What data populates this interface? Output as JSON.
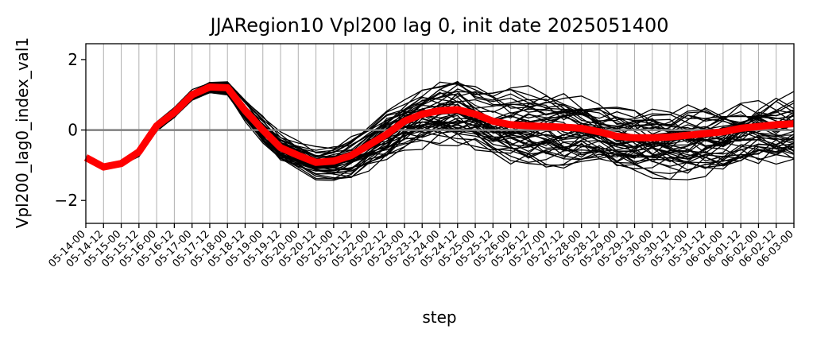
{
  "chart_data": {
    "type": "line",
    "title": "JJARegion10 Vpl200 lag 0, init date 2025051400",
    "xlabel": "step",
    "ylabel": "Vpl200_lag0_index_val1",
    "x": [
      "05-14-00",
      "05-14-12",
      "05-15-00",
      "05-15-12",
      "05-16-00",
      "05-16-12",
      "05-17-00",
      "05-17-12",
      "05-18-00",
      "05-18-12",
      "05-19-00",
      "05-19-12",
      "05-20-00",
      "05-20-12",
      "05-21-00",
      "05-21-12",
      "05-22-00",
      "05-22-12",
      "05-23-00",
      "05-23-12",
      "05-24-00",
      "05-24-12",
      "05-25-00",
      "05-25-12",
      "05-26-00",
      "05-26-12",
      "05-27-00",
      "05-27-12",
      "05-28-00",
      "05-28-12",
      "05-29-00",
      "05-29-12",
      "05-30-00",
      "05-30-12",
      "05-31-00",
      "05-31-12",
      "06-01-00",
      "06-01-12",
      "06-02-00",
      "06-02-12",
      "06-03-00"
    ],
    "ylim": [
      -2.65,
      2.45
    ],
    "yticks": [
      -2,
      0,
      2
    ],
    "ytick_labels": [
      "−2",
      "0",
      "2"
    ],
    "grid": "vertical",
    "reference_line": {
      "y": 0,
      "color": "#808080"
    },
    "mean_series": {
      "color": "#ff0000",
      "values": [
        -0.78,
        -1.05,
        -0.95,
        -0.62,
        0.12,
        0.5,
        1.0,
        1.22,
        1.2,
        0.55,
        0.0,
        -0.5,
        -0.72,
        -0.92,
        -0.88,
        -0.72,
        -0.42,
        -0.12,
        0.25,
        0.45,
        0.55,
        0.58,
        0.45,
        0.25,
        0.15,
        0.12,
        0.1,
        0.08,
        0.05,
        -0.05,
        -0.18,
        -0.22,
        -0.22,
        -0.2,
        -0.15,
        -0.1,
        -0.05,
        0.05,
        0.1,
        0.15,
        0.18
      ]
    },
    "ensemble_series": {
      "color": "#000000",
      "members": 50,
      "spread": [
        0,
        0,
        0.05,
        0.12,
        0.15,
        0.15,
        0.15,
        0.18,
        0.2,
        0.28,
        0.35,
        0.38,
        0.38,
        0.4,
        0.45,
        0.55,
        0.62,
        0.72,
        0.8,
        0.88,
        0.95,
        0.98,
        1.0,
        1.02,
        1.05,
        1.05,
        1.05,
        1.05,
        1.05,
        1.05,
        1.05,
        1.05,
        1.05,
        1.05,
        1.05,
        1.05,
        1.05,
        1.05,
        1.05,
        1.05,
        1.05
      ]
    }
  }
}
